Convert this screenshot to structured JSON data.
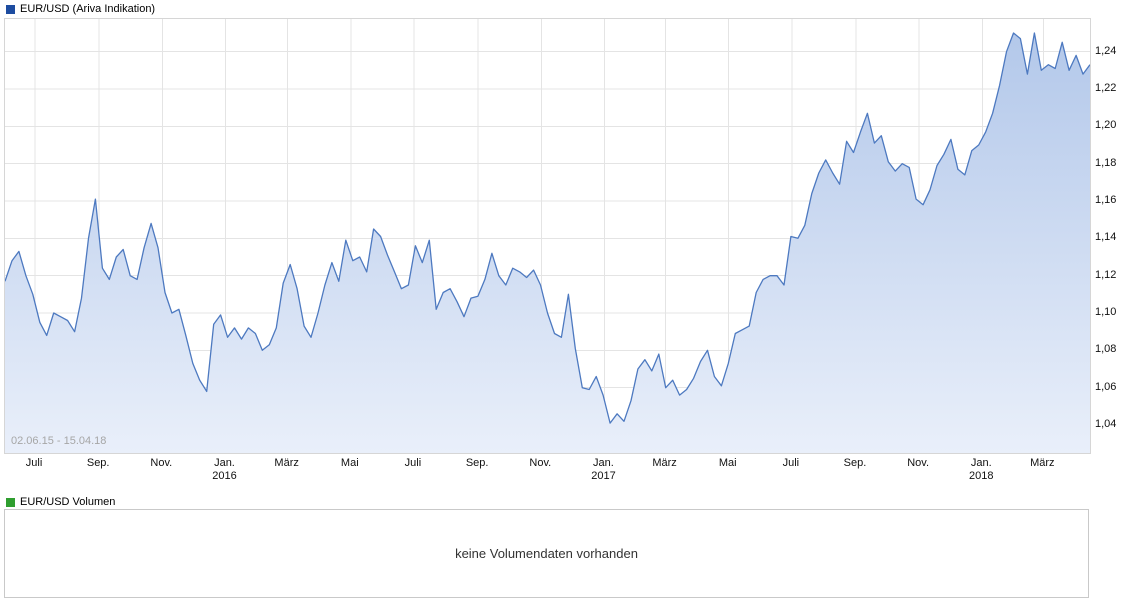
{
  "price_section": {
    "title": "EUR/USD (Ariva Indikation)",
    "marker_color": "#1d4ca0"
  },
  "volume_section": {
    "title": "EUR/USD Volumen",
    "marker_color": "#2f9e2f",
    "message": "keine Volumendaten vorhanden"
  },
  "chart_data": {
    "type": "line",
    "title": "EUR/USD (Ariva Indikation)",
    "series_name": "EUR/USD",
    "date_range_label": "02.06.15 - 15.04.18",
    "grid": true,
    "legend": "none",
    "y_axis_side": "right",
    "ylim": [
      1.025,
      1.2575
    ],
    "y_ticks": [
      {
        "value": 1.04,
        "label": "1,04"
      },
      {
        "value": 1.06,
        "label": "1,06"
      },
      {
        "value": 1.08,
        "label": "1,08"
      },
      {
        "value": 1.1,
        "label": "1,10"
      },
      {
        "value": 1.12,
        "label": "1,12"
      },
      {
        "value": 1.14,
        "label": "1,14"
      },
      {
        "value": 1.16,
        "label": "1,16"
      },
      {
        "value": 1.18,
        "label": "1,18"
      },
      {
        "value": 1.2,
        "label": "1,20"
      },
      {
        "value": 1.22,
        "label": "1,22"
      },
      {
        "value": 1.24,
        "label": "1,24"
      }
    ],
    "x_ticks": [
      {
        "label": "Juli",
        "pos": 0.0277
      },
      {
        "label": "Sep.",
        "pos": 0.0868
      },
      {
        "label": "Nov.",
        "pos": 0.145
      },
      {
        "label": "Jan.",
        "year": "2016",
        "pos": 0.2032
      },
      {
        "label": "März",
        "pos": 0.2605
      },
      {
        "label": "Mai",
        "pos": 0.3187
      },
      {
        "label": "Juli",
        "pos": 0.3769
      },
      {
        "label": "Sep.",
        "pos": 0.4361
      },
      {
        "label": "Nov.",
        "pos": 0.4943
      },
      {
        "label": "Jan.",
        "year": "2017",
        "pos": 0.5525
      },
      {
        "label": "März",
        "pos": 0.6088
      },
      {
        "label": "Mai",
        "pos": 0.667
      },
      {
        "label": "Juli",
        "pos": 0.7252
      },
      {
        "label": "Sep.",
        "pos": 0.7843
      },
      {
        "label": "Nov.",
        "pos": 0.8425
      },
      {
        "label": "Jan.",
        "year": "2018",
        "pos": 0.9007
      },
      {
        "label": "März",
        "pos": 0.957
      }
    ],
    "values": [
      1.117,
      1.128,
      1.133,
      1.12,
      1.11,
      1.095,
      1.088,
      1.1,
      1.098,
      1.096,
      1.09,
      1.108,
      1.14,
      1.161,
      1.124,
      1.118,
      1.13,
      1.134,
      1.12,
      1.118,
      1.135,
      1.148,
      1.135,
      1.111,
      1.1,
      1.102,
      1.088,
      1.073,
      1.064,
      1.058,
      1.094,
      1.099,
      1.087,
      1.092,
      1.086,
      1.092,
      1.089,
      1.08,
      1.083,
      1.092,
      1.116,
      1.126,
      1.113,
      1.093,
      1.087,
      1.1,
      1.115,
      1.127,
      1.117,
      1.139,
      1.128,
      1.13,
      1.122,
      1.145,
      1.141,
      1.131,
      1.122,
      1.113,
      1.115,
      1.136,
      1.127,
      1.139,
      1.102,
      1.111,
      1.113,
      1.106,
      1.098,
      1.108,
      1.109,
      1.118,
      1.132,
      1.12,
      1.115,
      1.124,
      1.122,
      1.119,
      1.123,
      1.115,
      1.1,
      1.089,
      1.087,
      1.11,
      1.081,
      1.06,
      1.059,
      1.066,
      1.056,
      1.041,
      1.046,
      1.042,
      1.053,
      1.07,
      1.075,
      1.069,
      1.078,
      1.06,
      1.064,
      1.056,
      1.059,
      1.065,
      1.074,
      1.08,
      1.066,
      1.061,
      1.073,
      1.089,
      1.091,
      1.093,
      1.111,
      1.118,
      1.12,
      1.12,
      1.115,
      1.141,
      1.14,
      1.147,
      1.164,
      1.175,
      1.182,
      1.175,
      1.169,
      1.192,
      1.186,
      1.197,
      1.207,
      1.191,
      1.195,
      1.181,
      1.176,
      1.18,
      1.178,
      1.161,
      1.158,
      1.166,
      1.179,
      1.185,
      1.193,
      1.177,
      1.174,
      1.187,
      1.19,
      1.197,
      1.207,
      1.222,
      1.24,
      1.25,
      1.247,
      1.228,
      1.25,
      1.23,
      1.233,
      1.231,
      1.245,
      1.23,
      1.238,
      1.228,
      1.233
    ],
    "colors": {
      "line": "#4d79c0",
      "fill_top": "#b3c8ea",
      "fill_bottom": "#e9effa",
      "grid": "#e4e4e4",
      "plot_border": "#d6d6d6",
      "axis_text": "#111111",
      "range_text": "#a6a6a6"
    }
  }
}
